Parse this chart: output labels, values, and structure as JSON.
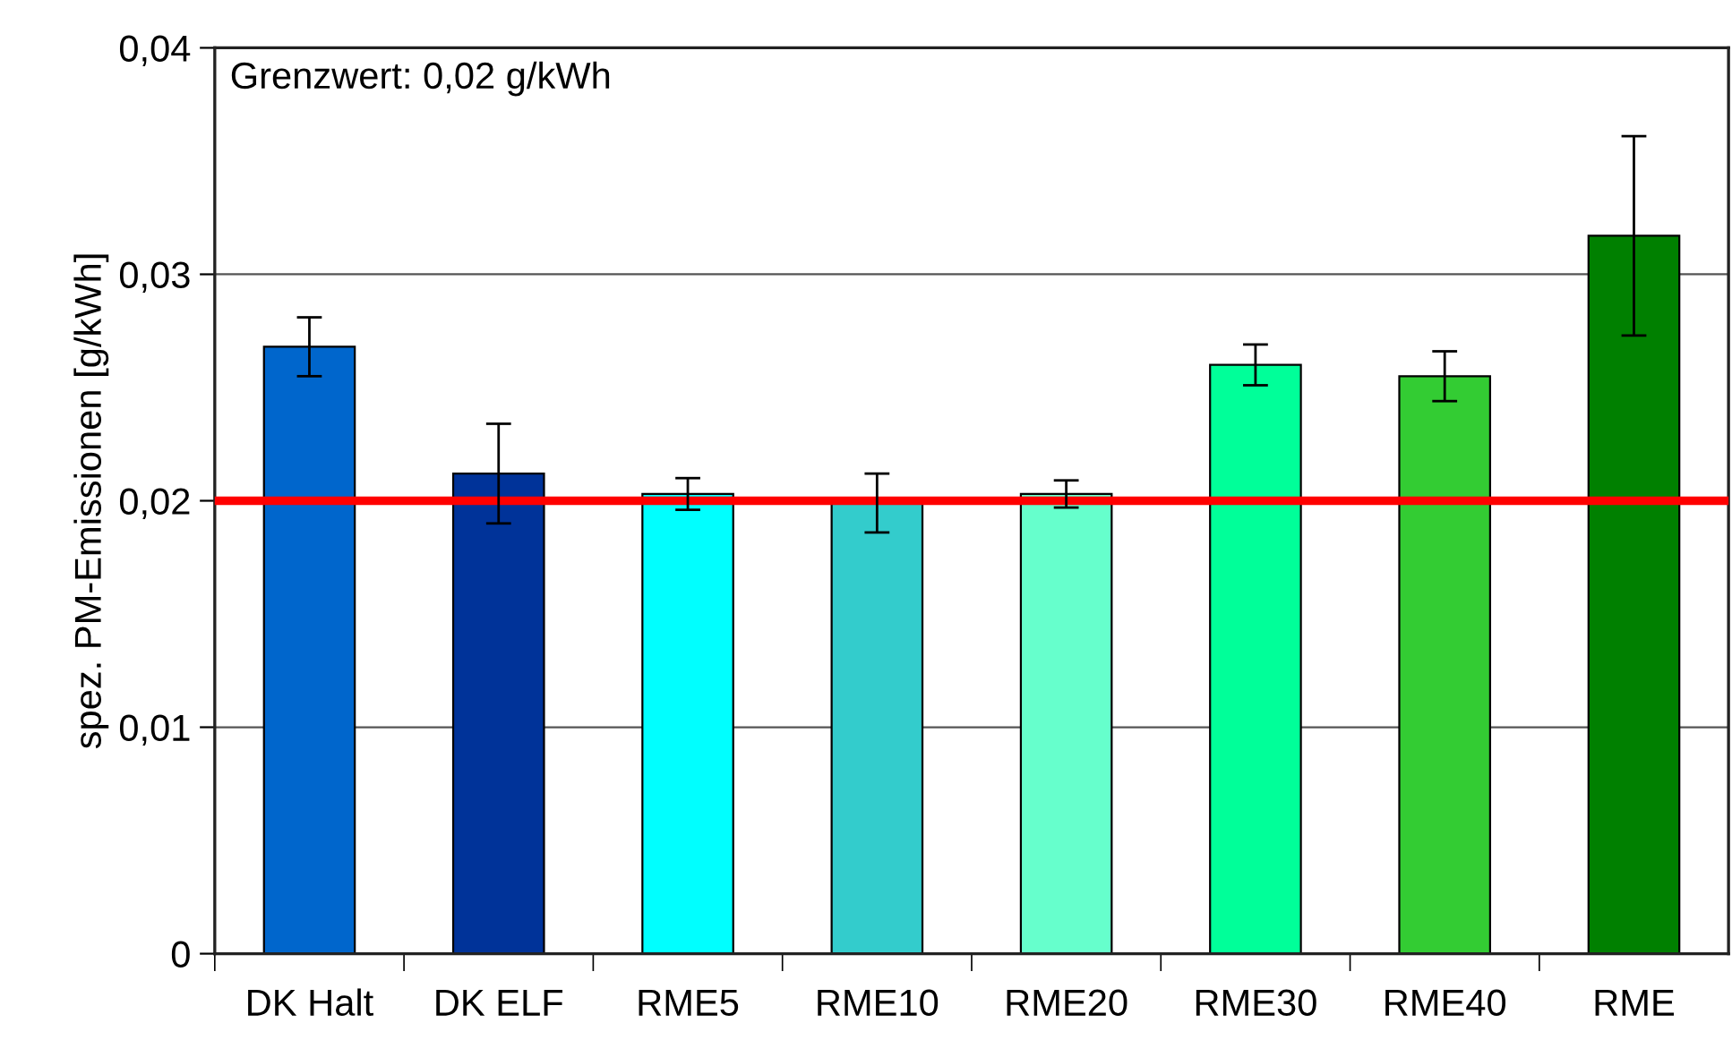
{
  "chart_data": {
    "type": "bar",
    "ylabel": "spez. PM-Emissionen [g/kWh]",
    "categories": [
      "DK Halt",
      "DK ELF",
      "RME5",
      "RME10",
      "RME20",
      "RME30",
      "RME40",
      "RME"
    ],
    "values": [
      0.0268,
      0.0212,
      0.0203,
      0.0199,
      0.0203,
      0.026,
      0.0255,
      0.0317
    ],
    "errors": [
      0.0013,
      0.0022,
      0.0007,
      0.0013,
      0.0006,
      0.0009,
      0.0011,
      0.0044
    ],
    "colors": [
      "#0066cc",
      "#003399",
      "#00ffff",
      "#33cccc",
      "#66ffcc",
      "#00ff99",
      "#33cc33",
      "#008000"
    ],
    "ylim": [
      0,
      0.04
    ],
    "yticks": [
      0,
      {
        "value": 0.01,
        "label": "0,01"
      },
      {
        "value": 0.02,
        "label": "0,02"
      },
      {
        "value": 0.03,
        "label": "0,03"
      },
      {
        "value": 0.04,
        "label": "0,04"
      }
    ],
    "grid": "y",
    "ref_lines": [
      {
        "axis": "y",
        "value": 0.02,
        "color": "#ff0000"
      }
    ],
    "annotations": [
      "Grenzwert: 0,02 g/kWh"
    ]
  }
}
